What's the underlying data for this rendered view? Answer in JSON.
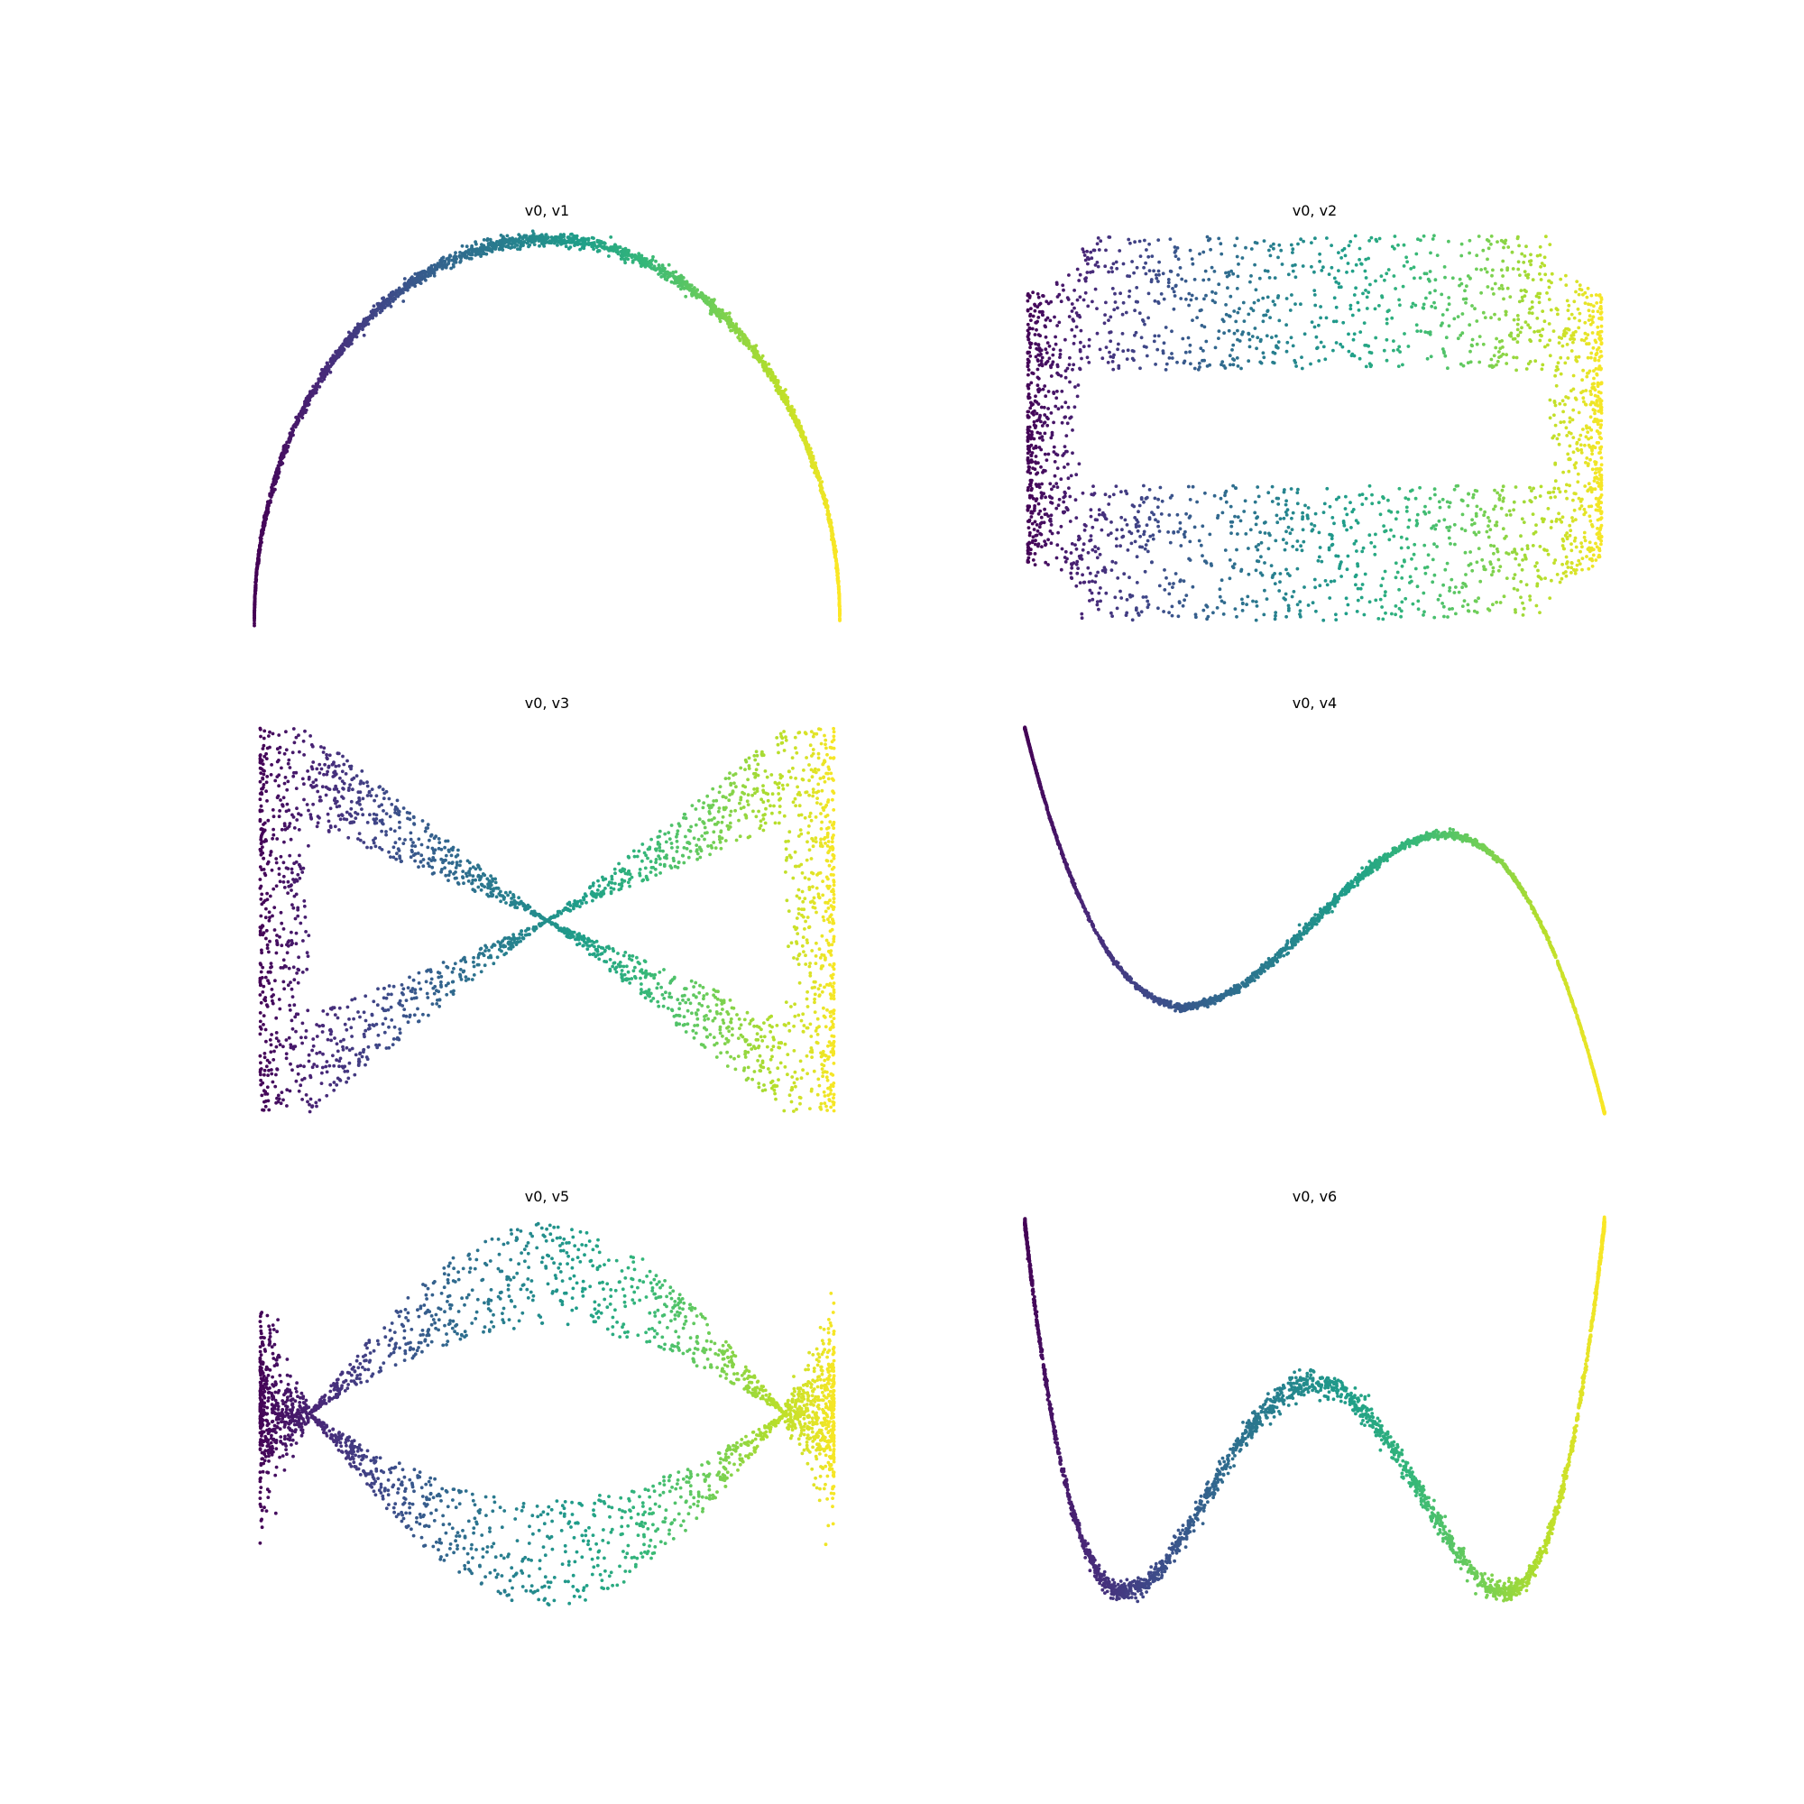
{
  "figure": {
    "panels": [
      {
        "title": "v0, v1"
      },
      {
        "title": "v0, v2"
      },
      {
        "title": "v0, v3"
      },
      {
        "title": "v0, v4"
      },
      {
        "title": "v0, v5"
      },
      {
        "title": "v0, v6"
      }
    ]
  },
  "chart_data": [
    {
      "type": "scatter",
      "title": "v0, v1",
      "xlabel": "",
      "ylabel": "",
      "axes_visible": false,
      "colormap": "viridis",
      "color_by": "x",
      "shape": "arch",
      "x": [
        -1.0,
        -0.9,
        -0.75,
        -0.5,
        -0.25,
        0.0,
        0.25,
        0.5,
        0.75,
        0.9,
        1.0
      ],
      "y": [
        0.0,
        0.44,
        0.66,
        0.87,
        0.97,
        1.0,
        0.97,
        0.87,
        0.66,
        0.44,
        0.0
      ],
      "xlim": [
        -1,
        1
      ],
      "ylim": [
        0,
        1
      ]
    },
    {
      "type": "scatter",
      "title": "v0, v2",
      "xlabel": "",
      "ylabel": "",
      "axes_visible": false,
      "colormap": "viridis",
      "color_by": "x",
      "shape": "rectangular ring, dense at left and right edges",
      "x": [
        -1.0,
        -0.83,
        -0.83,
        0.83,
        0.83,
        1.0,
        1.0,
        -1.0
      ],
      "y": [
        0.0,
        0.3,
        -0.3,
        0.3,
        -0.3,
        0.5,
        -0.5,
        0.5
      ],
      "xlim": [
        -1,
        1
      ],
      "ylim": [
        -1,
        1
      ]
    },
    {
      "type": "scatter",
      "title": "v0, v3",
      "xlabel": "",
      "ylabel": "",
      "axes_visible": false,
      "colormap": "viridis",
      "color_by": "x",
      "shape": "bow-tie crossing at center",
      "x": [
        -1.0,
        -0.83,
        0.0,
        0.83,
        1.0
      ],
      "y": [
        0.0,
        0.5,
        0.0,
        -0.5,
        0.0
      ],
      "xlim": [
        -1,
        1
      ],
      "ylim": [
        -1,
        1
      ]
    },
    {
      "type": "scatter",
      "title": "v0, v4",
      "xlabel": "",
      "ylabel": "",
      "axes_visible": false,
      "colormap": "viridis",
      "color_by": "x",
      "shape": "cubic S-curve",
      "x": [
        -1.0,
        -0.6,
        -0.25,
        0.0,
        0.25,
        0.6,
        1.0
      ],
      "y": [
        1.0,
        -0.5,
        -0.35,
        0.0,
        0.35,
        0.5,
        -1.0
      ],
      "xlim": [
        -1,
        1
      ],
      "ylim": [
        -1,
        1
      ]
    },
    {
      "type": "scatter",
      "title": "v0, v5",
      "xlabel": "",
      "ylabel": "",
      "axes_visible": false,
      "colormap": "viridis",
      "color_by": "x",
      "shape": "lens with pinch points near edges",
      "x": [
        -1.0,
        -0.83,
        -0.4,
        0.0,
        0.4,
        0.83,
        1.0
      ],
      "y": [
        0.0,
        0.0,
        0.55,
        0.7,
        0.55,
        0.0,
        0.0
      ],
      "xlim": [
        -1,
        1
      ],
      "ylim": [
        -1,
        1
      ]
    },
    {
      "type": "scatter",
      "title": "v0, v6",
      "xlabel": "",
      "ylabel": "",
      "axes_visible": false,
      "colormap": "viridis",
      "color_by": "x",
      "shape": "W-shaped quartic",
      "x": [
        -1.0,
        -0.85,
        -0.5,
        0.0,
        0.5,
        0.85,
        1.0
      ],
      "y": [
        1.0,
        -1.0,
        -0.45,
        0.45,
        -0.45,
        -1.0,
        1.0
      ],
      "xlim": [
        -1,
        1
      ],
      "ylim": [
        -1,
        1
      ]
    }
  ]
}
